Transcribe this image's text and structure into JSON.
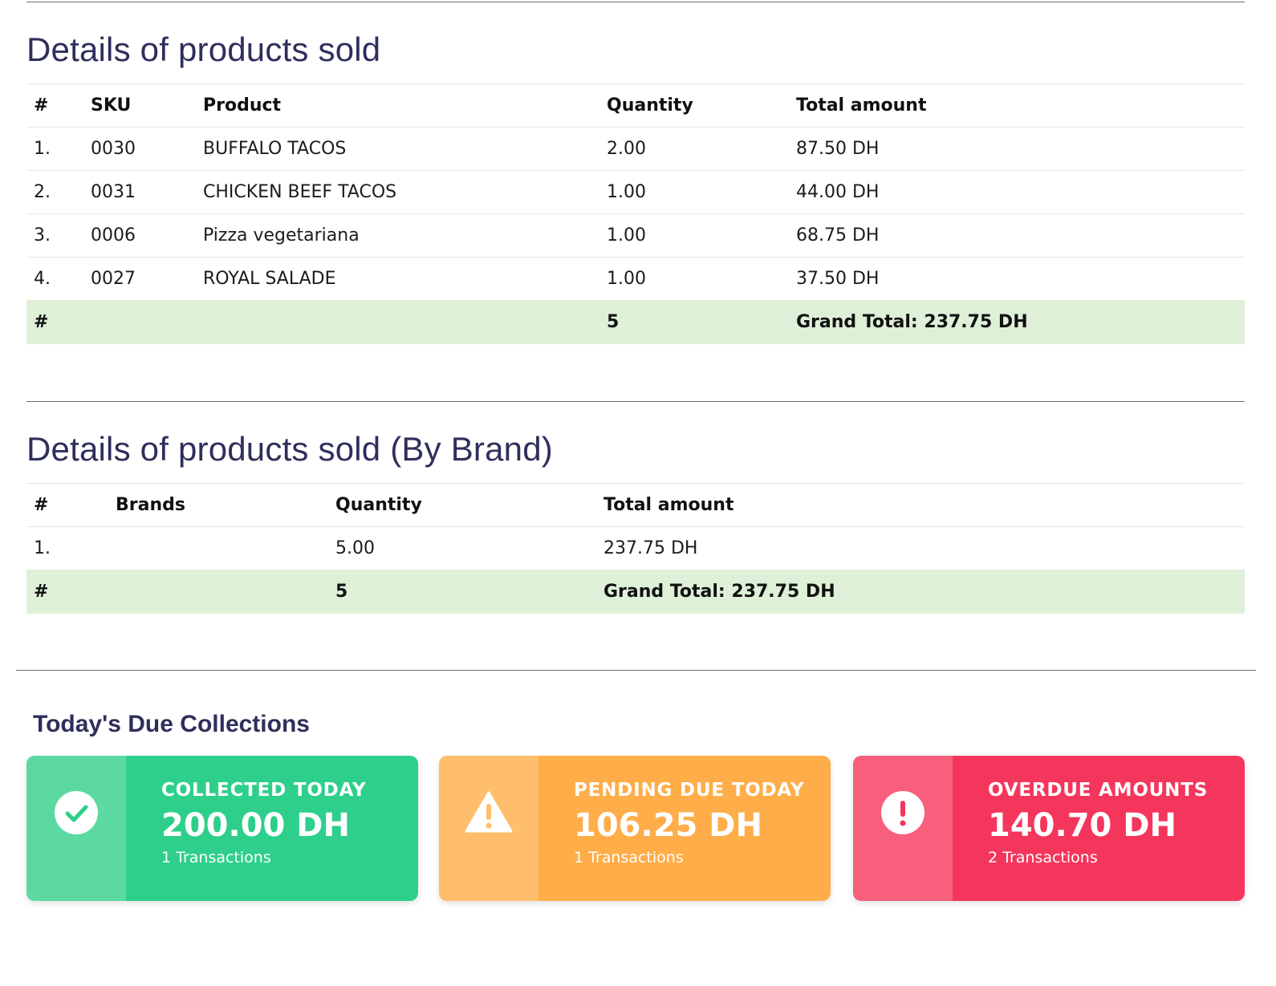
{
  "products_section": {
    "title": "Details of products sold",
    "headers": [
      "#",
      "SKU",
      "Product",
      "Quantity",
      "Total amount"
    ],
    "rows": [
      {
        "idx": "1.",
        "sku": "0030",
        "product": "BUFFALO TACOS",
        "quantity": "2.00",
        "total": "87.50 DH"
      },
      {
        "idx": "2.",
        "sku": "0031",
        "product": "CHICKEN BEEF TACOS",
        "quantity": "1.00",
        "total": "44.00 DH"
      },
      {
        "idx": "3.",
        "sku": "0006",
        "product": "Pizza vegetariana",
        "quantity": "1.00",
        "total": "68.75 DH"
      },
      {
        "idx": "4.",
        "sku": "0027",
        "product": "ROYAL SALADE",
        "quantity": "1.00",
        "total": "37.50 DH"
      }
    ],
    "footer": {
      "idx": "#",
      "quantity": "5",
      "total": "Grand Total: 237.75 DH"
    }
  },
  "brand_section": {
    "title": "Details of products sold (By Brand)",
    "headers": [
      "#",
      "Brands",
      "Quantity",
      "Total amount"
    ],
    "rows": [
      {
        "idx": "1.",
        "brand": "",
        "quantity": "5.00",
        "total": "237.75 DH"
      }
    ],
    "footer": {
      "idx": "#",
      "quantity": "5",
      "total": "Grand Total: 237.75 DH"
    }
  },
  "due_collections": {
    "title": "Today's Due Collections",
    "cards": [
      {
        "label": "COLLECTED TODAY",
        "amount": "200.00 DH",
        "transactions": "1 Transactions",
        "icon": "check-circle-icon",
        "color": "#2ecf8b",
        "icon_bg": "#5bd9a1"
      },
      {
        "label": "PENDING DUE TODAY",
        "amount": "106.25 DH",
        "transactions": "1 Transactions",
        "icon": "warning-triangle-icon",
        "color": "#ffad48",
        "icon_bg": "#ffbe6b"
      },
      {
        "label": "OVERDUE AMOUNTS",
        "amount": "140.70 DH",
        "transactions": "2 Transactions",
        "icon": "exclamation-circle-icon",
        "color": "#f5365c",
        "icon_bg": "#f75f7c"
      }
    ]
  }
}
